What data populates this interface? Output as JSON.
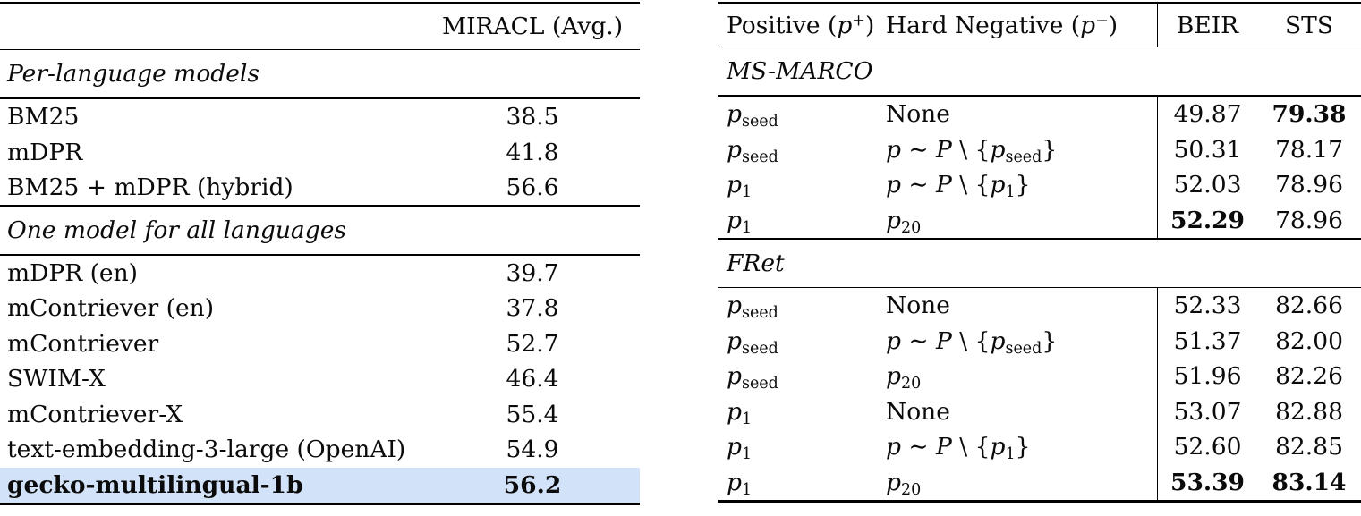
{
  "page": {
    "background": "#ffffff",
    "text_color": "#0b0b0b",
    "rule_color": "#000000"
  },
  "left_table": {
    "header": "MIRACL (Avg.)",
    "highlight_color": "#d2e2f8",
    "sections": [
      {
        "title": "Per-language models",
        "rows": [
          {
            "model": "BM25",
            "value": "38.5"
          },
          {
            "model": "mDPR",
            "value": "41.8"
          },
          {
            "model": "BM25 + mDPR (hybrid)",
            "value": "56.6"
          }
        ]
      },
      {
        "title": "One model for all languages",
        "rows": [
          {
            "model": "mDPR (en)",
            "value": "39.7"
          },
          {
            "model": "mContriever (en)",
            "value": "37.8"
          },
          {
            "model": "mContriever",
            "value": "52.7"
          },
          {
            "model": "SWIM-X",
            "value": "46.4"
          },
          {
            "model": "mContriever-X",
            "value": "55.4"
          },
          {
            "model": "text-embedding-3-large (OpenAI)",
            "value": "54.9"
          },
          {
            "model": "gecko-multilingual-1b",
            "value": "56.2",
            "bold": true,
            "highlight": true
          }
        ]
      }
    ]
  },
  "right_table": {
    "headers": {
      "positive": "Positive (p^{+})",
      "hard_negative": "Hard Negative (p^{−})",
      "beir": "BEIR",
      "sts": "STS"
    },
    "sections": [
      {
        "title": "MS-MARCO",
        "rows": [
          {
            "positive": "p_{seed}",
            "negative": "None",
            "beir": "49.87",
            "sts": "79.38",
            "sts_bold": true
          },
          {
            "positive": "p_{seed}",
            "negative": "p ∼ P \\ {p_{seed}}",
            "beir": "50.31",
            "sts": "78.17"
          },
          {
            "positive": "p_{1}",
            "negative": "p ∼ P \\ {p_{1}}",
            "beir": "52.03",
            "sts": "78.96"
          },
          {
            "positive": "p_{1}",
            "negative": "p_{20}",
            "beir": "52.29",
            "sts": "78.96",
            "beir_bold": true
          }
        ]
      },
      {
        "title": "FRet",
        "rows": [
          {
            "positive": "p_{seed}",
            "negative": "None",
            "beir": "52.33",
            "sts": "82.66"
          },
          {
            "positive": "p_{seed}",
            "negative": "p ∼ P \\ {p_{seed}}",
            "beir": "51.37",
            "sts": "82.00"
          },
          {
            "positive": "p_{seed}",
            "negative": "p_{20}",
            "beir": "51.96",
            "sts": "82.26"
          },
          {
            "positive": "p_{1}",
            "negative": "None",
            "beir": "53.07",
            "sts": "82.88"
          },
          {
            "positive": "p_{1}",
            "negative": "p ∼ P \\ {p_{1}}",
            "beir": "52.60",
            "sts": "82.85"
          },
          {
            "positive": "p_{1}",
            "negative": "p_{20}",
            "beir": "53.39",
            "sts": "83.14",
            "beir_bold": true,
            "sts_bold": true
          }
        ]
      }
    ]
  }
}
